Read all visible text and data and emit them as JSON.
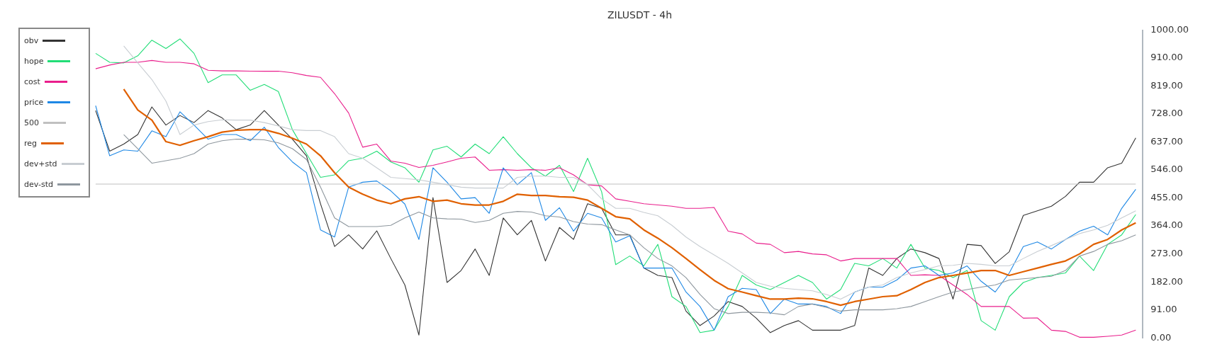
{
  "chart_data": {
    "type": "line",
    "title": "ZILUSDT - 4h",
    "categories": [
      null,
      null,
      null,
      null,
      null,
      null,
      null,
      null,
      null,
      null,
      null,
      null,
      null,
      null,
      null,
      null,
      null,
      null,
      null,
      null,
      null,
      null,
      null,
      null,
      null,
      null,
      null,
      null,
      null,
      null,
      null,
      null,
      null,
      null,
      null,
      null,
      null,
      null,
      null,
      null,
      null,
      null,
      null,
      null,
      null,
      null,
      null,
      null,
      null,
      null,
      null,
      null,
      null,
      null,
      null,
      null,
      null,
      null,
      null,
      null,
      null,
      null,
      null,
      null,
      null,
      null,
      null,
      null,
      null,
      null,
      null,
      null,
      null,
      null,
      null
    ],
    "series": [
      {
        "name": "obv",
        "color": "#333333",
        "values": [
          739,
          607,
          630,
          661,
          751,
          692,
          723,
          700,
          739,
          715,
          677,
          692,
          739,
          692,
          646,
          592,
          436,
          297,
          335,
          289,
          348,
          258,
          172,
          9,
          456,
          180,
          219,
          289,
          203,
          390,
          335,
          382,
          250,
          359,
          320,
          436,
          421,
          335,
          335,
          227,
          203,
          196,
          87,
          40,
          71,
          118,
          102,
          64,
          17,
          40,
          56,
          25,
          25,
          25,
          40,
          227,
          203,
          258,
          289,
          277,
          258,
          126,
          304,
          300,
          242,
          280,
          398,
          413,
          428,
          460,
          506,
          506,
          553,
          568,
          650
        ]
      },
      {
        "name": "hope",
        "color": "#22dd77",
        "values": [
          925,
          896,
          894,
          917,
          968,
          941,
          972,
          925,
          830,
          855,
          855,
          805,
          824,
          801,
          677,
          599,
          522,
          530,
          576,
          584,
          607,
          572,
          553,
          506,
          611,
          623,
          588,
          630,
          599,
          654,
          599,
          553,
          526,
          561,
          476,
          584,
          475,
          238,
          266,
          234,
          304,
          134,
          102,
          17,
          25,
          102,
          203,
          172,
          157,
          180,
          203,
          180,
          126,
          157,
          242,
          234,
          258,
          227,
          304,
          227,
          219,
          196,
          219,
          56,
          25,
          134,
          180,
          196,
          203,
          211,
          266,
          219,
          304,
          335,
          401
        ]
      },
      {
        "name": "cost",
        "color": "#e91e8c",
        "values": [
          875,
          887,
          896,
          896,
          902,
          896,
          896,
          891,
          870,
          868,
          868,
          867,
          867,
          867,
          862,
          853,
          847,
          794,
          731,
          620,
          630,
          575,
          568,
          554,
          561,
          572,
          584,
          588,
          545,
          547,
          545,
          547,
          545,
          553,
          530,
          498,
          494,
          452,
          444,
          436,
          432,
          428,
          421,
          421,
          424,
          347,
          338,
          308,
          304,
          277,
          281,
          273,
          270,
          250,
          258,
          258,
          258,
          258,
          203,
          205,
          203,
          172,
          141,
          102,
          102,
          102,
          64,
          65,
          25,
          21,
          2,
          2,
          5,
          9,
          25
        ]
      },
      {
        "name": "price",
        "color": "#1e88e5",
        "values": [
          755,
          592,
          611,
          607,
          673,
          654,
          735,
          692,
          646,
          661,
          661,
          641,
          685,
          619,
          572,
          537,
          351,
          328,
          490,
          506,
          510,
          478,
          435,
          320,
          553,
          506,
          452,
          456,
          405,
          553,
          498,
          537,
          382,
          423,
          347,
          405,
          390,
          312,
          332,
          227,
          227,
          227,
          149,
          102,
          25,
          134,
          161,
          157,
          79,
          126,
          110,
          110,
          102,
          79,
          149,
          165,
          165,
          188,
          227,
          234,
          203,
          211,
          234,
          184,
          149,
          211,
          297,
          312,
          289,
          320,
          347,
          363,
          335,
          421,
          483
        ]
      },
      {
        "name": "500",
        "color": "#c0c0c0",
        "values": [
          500,
          500,
          500,
          500,
          500,
          500,
          500,
          500,
          500,
          500,
          500,
          500,
          500,
          500,
          500,
          500,
          500,
          500,
          500,
          500,
          500,
          500,
          500,
          500,
          500,
          500,
          500,
          500,
          500,
          500,
          500,
          500,
          500,
          500,
          500,
          500,
          500,
          500,
          500,
          500,
          500,
          500,
          500,
          500,
          500,
          500,
          500,
          500,
          500,
          500,
          500,
          500,
          500,
          500,
          500,
          500,
          500,
          500,
          500,
          500,
          500,
          500,
          500,
          500,
          500,
          500,
          500,
          500,
          500,
          500,
          500,
          500,
          500,
          500,
          500
        ]
      },
      {
        "name": "reg",
        "color": "#e06000",
        "values": [
          null,
          null,
          809,
          741,
          708,
          638,
          626,
          641,
          654,
          669,
          675,
          677,
          677,
          665,
          649,
          630,
          592,
          537,
          490,
          467,
          448,
          436,
          452,
          459,
          444,
          448,
          436,
          432,
          432,
          444,
          467,
          463,
          463,
          459,
          457,
          448,
          421,
          394,
          387,
          351,
          324,
          293,
          258,
          222,
          187,
          160,
          149,
          137,
          126,
          126,
          129,
          127,
          118,
          106,
          118,
          126,
          134,
          137,
          157,
          180,
          196,
          203,
          211,
          219,
          219,
          203,
          215,
          227,
          239,
          250,
          273,
          304,
          320,
          351,
          374
        ]
      },
      {
        "name": "dev+std",
        "color": "#c8cdd2",
        "values": [
          null,
          null,
          949,
          894,
          840,
          770,
          661,
          692,
          703,
          709,
          708,
          708,
          700,
          689,
          677,
          674,
          674,
          654,
          599,
          584,
          553,
          522,
          518,
          514,
          506,
          498,
          490,
          487,
          487,
          487,
          522,
          526,
          526,
          522,
          522,
          498,
          452,
          421,
          421,
          408,
          397,
          366,
          328,
          297,
          270,
          242,
          211,
          180,
          168,
          161,
          157,
          153,
          141,
          126,
          149,
          165,
          172,
          196,
          211,
          222,
          234,
          236,
          242,
          239,
          234,
          234,
          258,
          281,
          300,
          320,
          339,
          351,
          366,
          390,
          413
        ]
      },
      {
        "name": "dev-std",
        "color": "#8e979e",
        "values": [
          null,
          null,
          661,
          615,
          568,
          576,
          584,
          599,
          630,
          641,
          646,
          646,
          644,
          634,
          615,
          580,
          490,
          390,
          362,
          362,
          362,
          366,
          390,
          409,
          390,
          387,
          386,
          375,
          382,
          405,
          411,
          409,
          397,
          393,
          378,
          370,
          368,
          351,
          335,
          293,
          258,
          234,
          196,
          141,
          95,
          79,
          83,
          83,
          81,
          75,
          102,
          110,
          99,
          87,
          91,
          91,
          91,
          95,
          102,
          118,
          134,
          149,
          157,
          165,
          172,
          188,
          192,
          196,
          200,
          219,
          266,
          281,
          304,
          316,
          335
        ]
      }
    ],
    "ylim": [
      0,
      1000
    ],
    "yticks": [
      {
        "value": 0,
        "label": "0.00"
      },
      {
        "value": 91,
        "label": "91.00"
      },
      {
        "value": 182,
        "label": "182.00"
      },
      {
        "value": 273,
        "label": "273.00"
      },
      {
        "value": 364,
        "label": "364.00"
      },
      {
        "value": 455,
        "label": "455.00"
      },
      {
        "value": 546,
        "label": "546.00"
      },
      {
        "value": 637,
        "label": "637.00"
      },
      {
        "value": 728,
        "label": "728.00"
      },
      {
        "value": 819,
        "label": "819.00"
      },
      {
        "value": 910,
        "label": "910.00"
      },
      {
        "value": 1000,
        "label": "1000.00"
      }
    ],
    "grid": false,
    "legend": "top left"
  }
}
